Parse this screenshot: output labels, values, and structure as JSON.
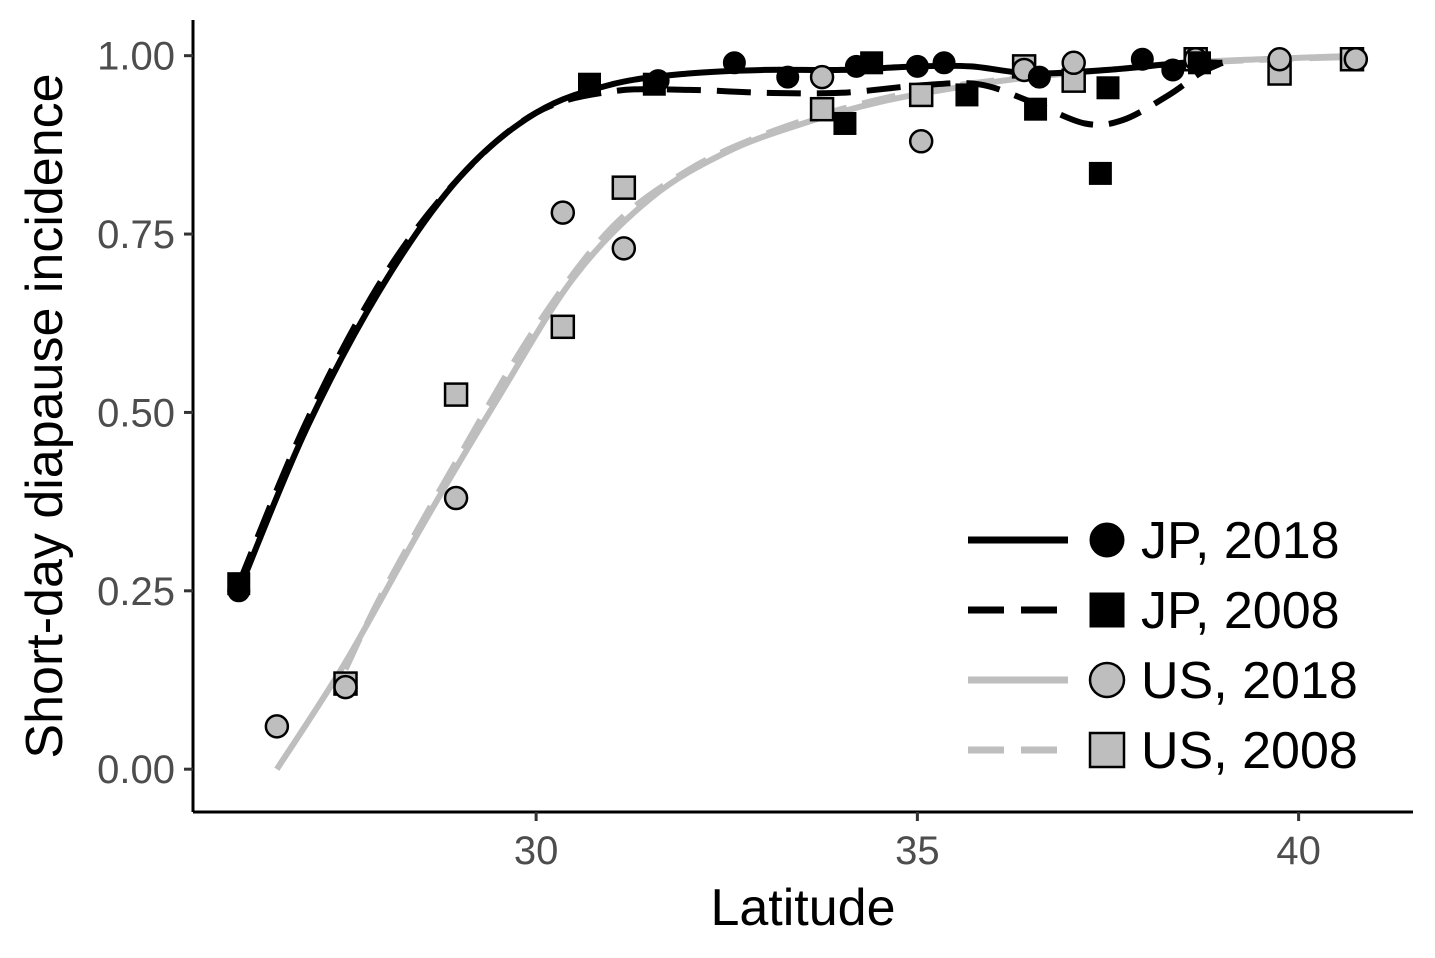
{
  "chart_data": {
    "type": "scatter",
    "xlabel": "Latitude",
    "ylabel": "Short-day diapause incidence",
    "xlim": [
      25.5,
      41.5
    ],
    "ylim": [
      -0.06,
      1.05
    ],
    "x_ticks": [
      30,
      35,
      40
    ],
    "y_ticks": [
      0,
      0.25,
      0.5,
      0.75,
      1.0
    ],
    "x_tick_labels": [
      "30",
      "35",
      "40"
    ],
    "y_tick_labels": [
      "0.00",
      "0.25",
      "0.50",
      "0.75",
      "1.00"
    ],
    "grid": false,
    "legend_position": "bottom-right",
    "series": [
      {
        "name": "JP, 2018",
        "color": "#000000",
        "marker": "circle",
        "line_style": "solid",
        "points": [
          [
            26.1,
            0.25
          ],
          [
            31.6,
            0.965
          ],
          [
            32.6,
            0.99
          ],
          [
            33.3,
            0.97
          ],
          [
            34.2,
            0.985
          ],
          [
            35.0,
            0.985
          ],
          [
            35.35,
            0.99
          ],
          [
            36.6,
            0.97
          ],
          [
            37.95,
            0.995
          ],
          [
            38.35,
            0.98
          ]
        ],
        "fit": [
          [
            26.1,
            0.25
          ],
          [
            27.0,
            0.48
          ],
          [
            28.0,
            0.68
          ],
          [
            29.0,
            0.83
          ],
          [
            30.0,
            0.92
          ],
          [
            31.0,
            0.96
          ],
          [
            32.0,
            0.975
          ],
          [
            33.0,
            0.98
          ],
          [
            34.0,
            0.98
          ],
          [
            35.0,
            0.985
          ],
          [
            35.7,
            0.985
          ],
          [
            36.5,
            0.975
          ],
          [
            37.5,
            0.98
          ],
          [
            38.5,
            0.99
          ],
          [
            39.0,
            0.99
          ]
        ]
      },
      {
        "name": "JP, 2008",
        "color": "#000000",
        "marker": "square",
        "line_style": "dashed",
        "points": [
          [
            26.1,
            0.26
          ],
          [
            30.7,
            0.96
          ],
          [
            31.55,
            0.96
          ],
          [
            34.05,
            0.905
          ],
          [
            34.4,
            0.99
          ],
          [
            35.65,
            0.945
          ],
          [
            36.55,
            0.925
          ],
          [
            37.4,
            0.835
          ],
          [
            37.5,
            0.955
          ],
          [
            38.7,
            0.99
          ]
        ],
        "fit": [
          [
            26.1,
            0.26
          ],
          [
            27.0,
            0.49
          ],
          [
            28.0,
            0.69
          ],
          [
            29.0,
            0.83
          ],
          [
            30.0,
            0.92
          ],
          [
            31.0,
            0.95
          ],
          [
            32.0,
            0.952
          ],
          [
            33.0,
            0.948
          ],
          [
            34.0,
            0.948
          ],
          [
            35.0,
            0.958
          ],
          [
            35.8,
            0.96
          ],
          [
            36.5,
            0.935
          ],
          [
            37.2,
            0.905
          ],
          [
            37.7,
            0.91
          ],
          [
            38.3,
            0.945
          ],
          [
            38.7,
            0.975
          ],
          [
            39.0,
            0.99
          ]
        ]
      },
      {
        "name": "US, 2018",
        "color": "#bebebe",
        "marker": "circle",
        "line_style": "solid",
        "points": [
          [
            26.6,
            0.06
          ],
          [
            27.5,
            0.115
          ],
          [
            28.95,
            0.38
          ],
          [
            30.35,
            0.78
          ],
          [
            31.15,
            0.73
          ],
          [
            33.75,
            0.97
          ],
          [
            35.05,
            0.88
          ],
          [
            36.4,
            0.98
          ],
          [
            37.05,
            0.99
          ],
          [
            38.65,
            0.995
          ],
          [
            39.75,
            0.995
          ],
          [
            40.75,
            0.995
          ]
        ],
        "fit": [
          [
            26.6,
            0.0
          ],
          [
            27.5,
            0.15
          ],
          [
            28.5,
            0.34
          ],
          [
            29.5,
            0.52
          ],
          [
            30.5,
            0.69
          ],
          [
            31.5,
            0.8
          ],
          [
            32.5,
            0.865
          ],
          [
            33.5,
            0.905
          ],
          [
            34.5,
            0.935
          ],
          [
            35.5,
            0.955
          ],
          [
            36.5,
            0.97
          ],
          [
            37.5,
            0.98
          ],
          [
            38.5,
            0.99
          ],
          [
            39.5,
            0.995
          ],
          [
            40.75,
            1.0
          ]
        ]
      },
      {
        "name": "US, 2008",
        "color": "#bebebe",
        "marker": "square",
        "line_style": "dashed",
        "points": [
          [
            27.5,
            0.12
          ],
          [
            28.95,
            0.525
          ],
          [
            30.35,
            0.62
          ],
          [
            31.15,
            0.815
          ],
          [
            33.75,
            0.925
          ],
          [
            35.05,
            0.945
          ],
          [
            36.4,
            0.985
          ],
          [
            37.05,
            0.965
          ],
          [
            38.65,
            0.995
          ],
          [
            39.75,
            0.975
          ],
          [
            40.7,
            0.995
          ]
        ],
        "fit": [
          [
            27.5,
            0.14
          ],
          [
            28.0,
            0.25
          ],
          [
            29.0,
            0.44
          ],
          [
            30.0,
            0.62
          ],
          [
            31.0,
            0.76
          ],
          [
            32.0,
            0.84
          ],
          [
            33.0,
            0.89
          ],
          [
            34.0,
            0.925
          ],
          [
            35.0,
            0.95
          ],
          [
            36.0,
            0.965
          ],
          [
            37.0,
            0.975
          ],
          [
            38.0,
            0.985
          ],
          [
            39.0,
            0.992
          ],
          [
            40.0,
            0.996
          ],
          [
            40.7,
            0.998
          ]
        ]
      }
    ]
  }
}
